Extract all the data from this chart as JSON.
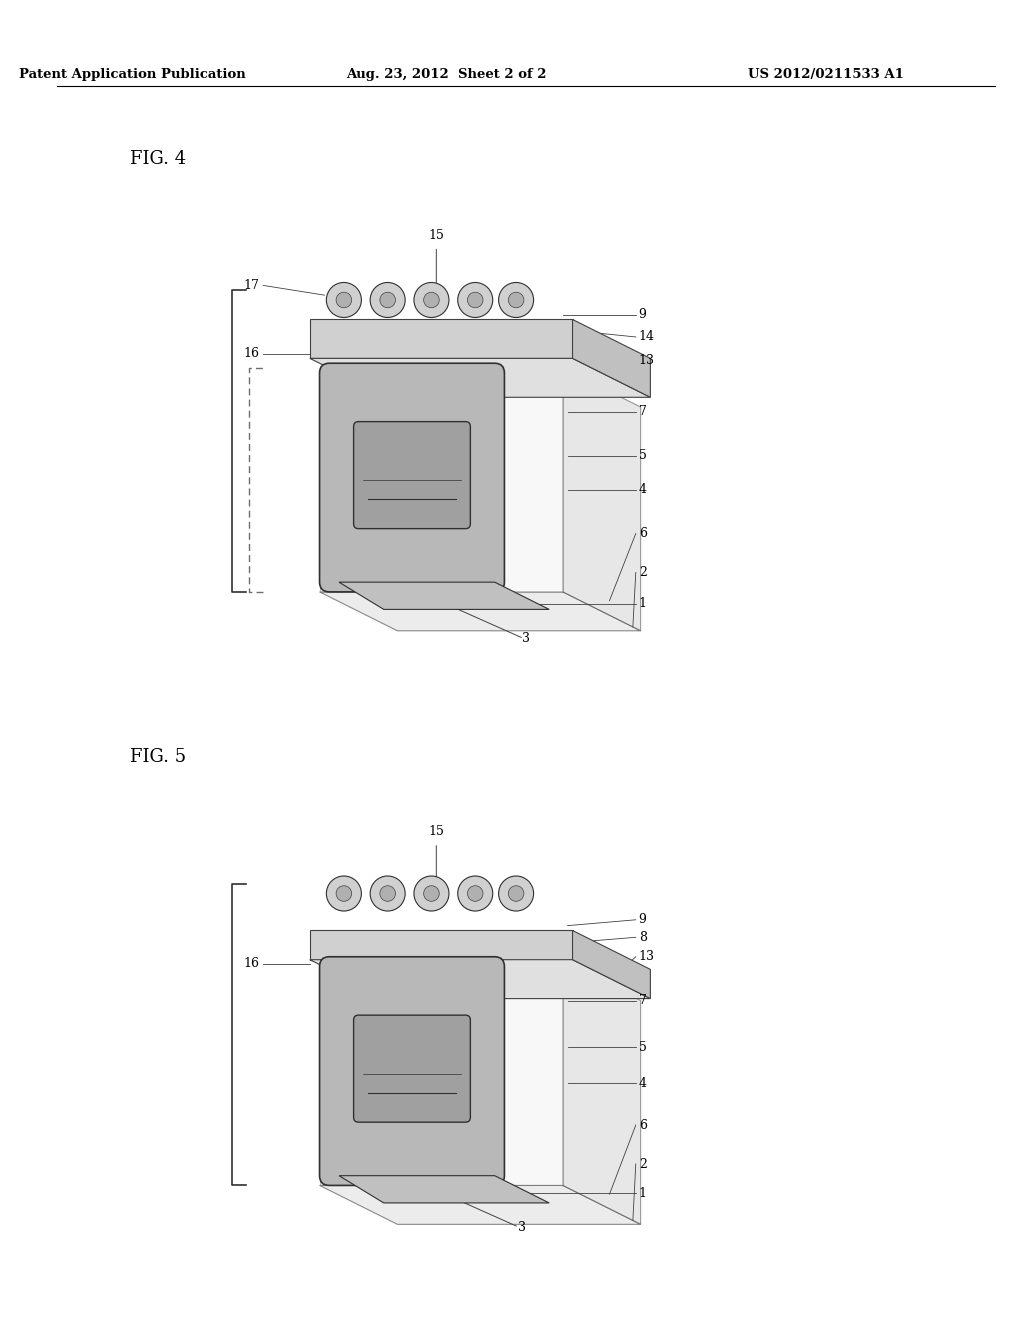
{
  "title_left": "Patent Application Publication",
  "title_mid": "Aug. 23, 2012  Sheet 2 of 2",
  "title_right": "US 2012/0211533 A1",
  "fig4_label": "FIG. 4",
  "fig5_label": "FIG. 5",
  "bg_color": "#ffffff",
  "line_color": "#000000",
  "drawing_gray": "#b0b0b0",
  "drawing_light": "#d0d0d0",
  "drawing_dark": "#888888",
  "header_fontsize": 10,
  "fig_label_fontsize": 13
}
